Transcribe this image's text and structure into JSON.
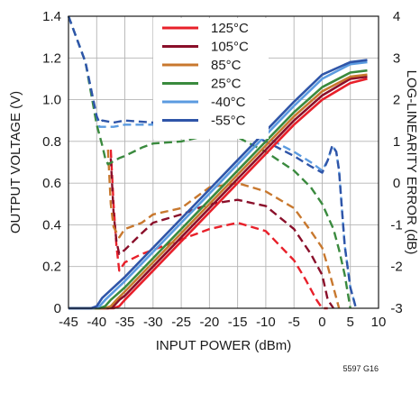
{
  "chart_data": {
    "type": "line",
    "xlabel": "INPUT POWER (dBm)",
    "ylabel": "OUTPUT VOLTAGE (V)",
    "y2label": "LOG-LINEARITY ERROR (dB)",
    "xlim": [
      -45,
      10
    ],
    "ylim": [
      0,
      1.4
    ],
    "y2lim": [
      -3,
      4
    ],
    "xticks": [
      "-45",
      "-40",
      "-35",
      "-30",
      "-25",
      "-20",
      "-15",
      "-10",
      "-5",
      "0",
      "5",
      "10"
    ],
    "yticks": [
      "0",
      "0.2",
      "0.4",
      "0.6",
      "0.8",
      "1.0",
      "1.2",
      "1.4"
    ],
    "y2ticks": [
      "-3",
      "-2",
      "-1",
      "0",
      "1",
      "2",
      "3",
      "4"
    ],
    "grid": true,
    "legend_position": "top-center",
    "footnote": "5597 G16",
    "series": [
      {
        "name": "125°C",
        "color": "#e8202a",
        "voltage": {
          "x": [
            -45,
            -37,
            -36,
            -35,
            -30,
            -25,
            -20,
            -15,
            -10,
            -5,
            0,
            5,
            8
          ],
          "y": [
            0,
            0,
            0.01,
            0.04,
            0.18,
            0.32,
            0.46,
            0.6,
            0.74,
            0.88,
            1.0,
            1.08,
            1.1
          ]
        },
        "error": {
          "x": [
            -37.5,
            -37,
            -36.5,
            -36,
            -35,
            -32,
            -30,
            -25,
            -20,
            -15,
            -10,
            -5,
            -3,
            -1,
            0,
            1
          ],
          "y": [
            0.8,
            -0.5,
            -1.5,
            -2.1,
            -1.9,
            -1.7,
            -1.6,
            -1.35,
            -1.1,
            -0.95,
            -1.15,
            -1.85,
            -2.3,
            -2.8,
            -3.0,
            -3.0
          ]
        }
      },
      {
        "name": "105°C",
        "color": "#8a0f2a",
        "voltage": {
          "x": [
            -45,
            -38,
            -37,
            -36,
            -35,
            -30,
            -25,
            -20,
            -15,
            -10,
            -5,
            0,
            5,
            8
          ],
          "y": [
            0,
            0,
            0.01,
            0.04,
            0.06,
            0.2,
            0.34,
            0.48,
            0.62,
            0.76,
            0.9,
            1.02,
            1.1,
            1.11
          ]
        },
        "error": {
          "x": [
            -37.5,
            -37,
            -36.5,
            -36,
            -35,
            -32,
            -30,
            -25,
            -20,
            -15,
            -10,
            -5,
            -2,
            0,
            1,
            2
          ],
          "y": [
            0.6,
            -0.7,
            -1.4,
            -1.7,
            -1.6,
            -1.2,
            -0.95,
            -0.75,
            -0.5,
            -0.4,
            -0.55,
            -1.1,
            -1.7,
            -2.2,
            -2.8,
            -3.0
          ]
        }
      },
      {
        "name": "85°C",
        "color": "#c8782e",
        "voltage": {
          "x": [
            -45,
            -38.5,
            -37.5,
            -36.5,
            -35,
            -30,
            -25,
            -20,
            -15,
            -10,
            -5,
            0,
            5,
            8
          ],
          "y": [
            0,
            0,
            0.01,
            0.04,
            0.08,
            0.22,
            0.36,
            0.5,
            0.64,
            0.78,
            0.92,
            1.04,
            1.11,
            1.12
          ]
        },
        "error": {
          "x": [
            -38,
            -37.5,
            -37,
            -36,
            -35,
            -32,
            -30,
            -25,
            -20,
            -15,
            -10,
            -5,
            -2,
            0,
            1,
            2,
            3
          ],
          "y": [
            0.8,
            -0.5,
            -1.05,
            -1.3,
            -1.1,
            -0.95,
            -0.75,
            -0.6,
            -0.1,
            0.0,
            -0.2,
            -0.6,
            -1.15,
            -1.55,
            -2.0,
            -2.5,
            -3.0
          ]
        }
      },
      {
        "name": "25°C",
        "color": "#3a8a3e",
        "voltage": {
          "x": [
            -45,
            -39.5,
            -38.5,
            -37.5,
            -35,
            -30,
            -25,
            -20,
            -15,
            -10,
            -5,
            0,
            5,
            8
          ],
          "y": [
            0,
            0,
            0.01,
            0.04,
            0.1,
            0.24,
            0.38,
            0.52,
            0.66,
            0.8,
            0.94,
            1.06,
            1.13,
            1.14
          ]
        },
        "error": {
          "x": [
            -45,
            -42,
            -40,
            -39,
            -38.5,
            -38,
            -36,
            -35,
            -32,
            -30,
            -25,
            -20,
            -15,
            -10,
            -5,
            -2,
            0,
            2,
            3,
            4,
            5
          ],
          "y": [
            4.0,
            2.9,
            1.4,
            0.9,
            0.6,
            0.45,
            0.6,
            0.65,
            0.85,
            0.95,
            1.0,
            1.15,
            1.1,
            0.75,
            0.3,
            -0.1,
            -0.5,
            -1.1,
            -1.6,
            -2.2,
            -3.0
          ]
        }
      },
      {
        "name": "-40°C",
        "color": "#5b9be0",
        "voltage": {
          "x": [
            -45,
            -40.5,
            -39.5,
            -38.5,
            -35,
            -30,
            -25,
            -20,
            -15,
            -10,
            -5,
            0,
            5,
            8
          ],
          "y": [
            0,
            0,
            0.01,
            0.04,
            0.13,
            0.27,
            0.41,
            0.55,
            0.69,
            0.83,
            0.97,
            1.1,
            1.17,
            1.18
          ]
        },
        "error": {
          "x": [
            -45,
            -42,
            -40,
            -39.5,
            -39,
            -37,
            -35,
            -30,
            -25,
            -20,
            -15,
            -10,
            -5,
            -2,
            0,
            1,
            1.8,
            2.5,
            3,
            3.5,
            4,
            5,
            6
          ],
          "y": [
            4.0,
            2.9,
            1.6,
            1.35,
            1.35,
            1.35,
            1.4,
            1.4,
            1.45,
            1.4,
            1.3,
            1.1,
            0.75,
            0.5,
            0.3,
            0.55,
            0.9,
            0.75,
            0.3,
            -0.6,
            -1.5,
            -2.5,
            -3.0
          ]
        }
      },
      {
        "name": "-55°C",
        "color": "#2f55a8",
        "voltage": {
          "x": [
            -45,
            -41,
            -40,
            -39,
            -35,
            -30,
            -25,
            -20,
            -15,
            -10,
            -5,
            0,
            5,
            8
          ],
          "y": [
            0,
            0,
            0.01,
            0.05,
            0.15,
            0.29,
            0.43,
            0.57,
            0.71,
            0.85,
            0.99,
            1.12,
            1.18,
            1.19
          ]
        },
        "error": {
          "x": [
            -45,
            -42,
            -40,
            -39.5,
            -39,
            -37,
            -35,
            -30,
            -25,
            -20,
            -15,
            -10,
            -5,
            -2,
            0,
            1,
            1.8,
            2.5,
            3,
            3.5,
            4,
            5,
            6
          ],
          "y": [
            4.0,
            2.9,
            1.6,
            1.45,
            1.5,
            1.45,
            1.5,
            1.45,
            1.45,
            1.4,
            1.25,
            1.0,
            0.65,
            0.4,
            0.25,
            0.55,
            0.9,
            0.75,
            0.3,
            -0.6,
            -1.5,
            -2.5,
            -3.0
          ]
        }
      }
    ]
  }
}
